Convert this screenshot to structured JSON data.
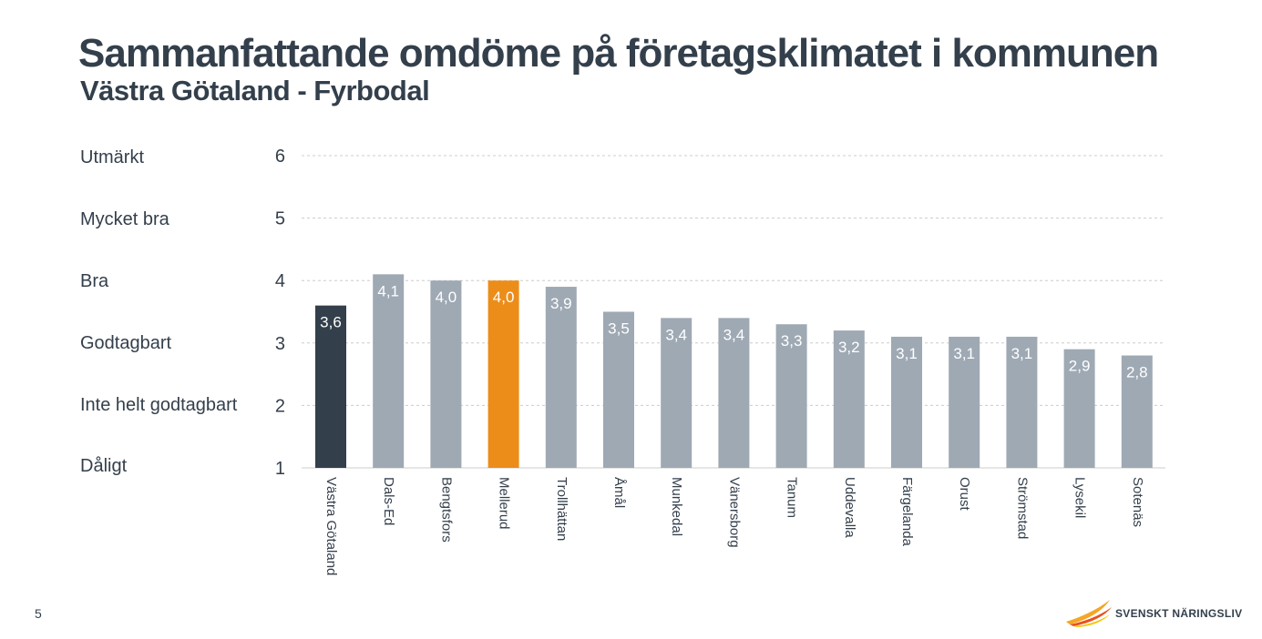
{
  "header": {
    "title": "Sammanfattande omdöme på företagsklimatet i kommunen",
    "subtitle": "Västra Götaland - Fyrbodal"
  },
  "rating_scale": [
    {
      "value": 6,
      "label": "Utmärkt"
    },
    {
      "value": 5,
      "label": "Mycket bra"
    },
    {
      "value": 4,
      "label": "Bra"
    },
    {
      "value": 3,
      "label": "Godtagbart"
    },
    {
      "value": 2,
      "label": "Inte helt godtagbart"
    },
    {
      "value": 1,
      "label": "Dåligt"
    }
  ],
  "chart_data": {
    "type": "bar",
    "title": "Sammanfattande omdöme på företagsklimatet i kommunen",
    "subtitle": "Västra Götaland - Fyrbodal",
    "categories": [
      "Västra Götaland",
      "Dals-Ed",
      "Bengtsfors",
      "Mellerud",
      "Trollhättan",
      "Åmål",
      "Munkedal",
      "Vänersborg",
      "Tanum",
      "Uddevalla",
      "Färgelanda",
      "Orust",
      "Strömstad",
      "Lysekil",
      "Sotenäs"
    ],
    "values": [
      3.6,
      4.1,
      4.0,
      4.0,
      3.9,
      3.5,
      3.4,
      3.4,
      3.3,
      3.2,
      3.1,
      3.1,
      3.1,
      2.9,
      2.8
    ],
    "data_labels": [
      "3,6",
      "4,1",
      "4,0",
      "4,0",
      "3,9",
      "3,5",
      "3,4",
      "3,4",
      "3,3",
      "3,2",
      "3,1",
      "3,1",
      "3,1",
      "2,9",
      "2,8"
    ],
    "y_ticks": [
      1,
      2,
      3,
      4,
      5,
      6
    ],
    "ylim": [
      1,
      6
    ],
    "grid": true,
    "colors": {
      "default": "#9ea9b4",
      "region": "#333f4b",
      "highlight": "#ec8d1a",
      "grid": "#cccccc",
      "axis": "#cccccc"
    },
    "bar_colors": [
      "region",
      "default",
      "default",
      "highlight",
      "default",
      "default",
      "default",
      "default",
      "default",
      "default",
      "default",
      "default",
      "default",
      "default",
      "default"
    ]
  },
  "footer": {
    "page_number": "5",
    "logo_text": "SVENSKT NÄRINGSLIV"
  }
}
